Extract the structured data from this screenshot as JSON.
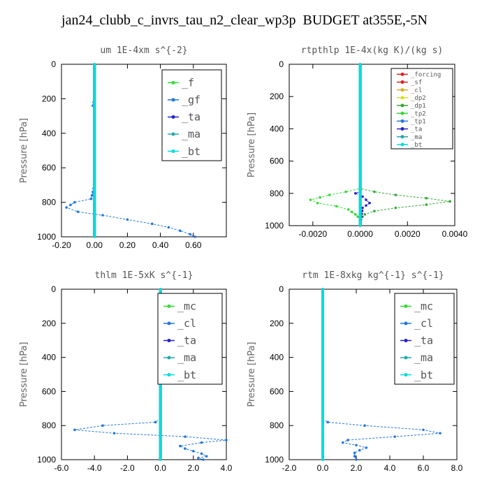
{
  "figure_title": "jan24_clubb_c_invrs_tau_n2_clear_wp3p  BUDGET at355E,-5N",
  "chart_data": [
    {
      "type": "line",
      "title": "um  1E-4xm s^{-2}",
      "ylabel": "Pressure [hPa]",
      "xlim": [
        -0.2,
        0.8
      ],
      "ylim": [
        1000,
        0
      ],
      "y_inverted": true,
      "x_ticks": [
        "-0.20",
        "0.00",
        "0.20",
        "0.40",
        "0.60"
      ],
      "x_tick_values": [
        -0.2,
        0.0,
        0.2,
        0.4,
        0.6
      ],
      "y_ticks": [
        "0",
        "200",
        "400",
        "600",
        "800",
        "1000"
      ],
      "y_tick_values": [
        0,
        200,
        400,
        600,
        800,
        1000
      ],
      "legend_position": "top-right",
      "legend_font": 15,
      "series": [
        {
          "name": "_f",
          "color": "#33dd33",
          "points": [
            [
              0,
              0
            ],
            [
              0,
              1000
            ]
          ]
        },
        {
          "name": "_gf",
          "color": "#2277dd",
          "points": [
            [
              0,
              0
            ],
            [
              0,
              200
            ],
            [
              -0.01,
              240
            ],
            [
              0,
              260
            ],
            [
              0,
              700
            ],
            [
              -0.02,
              780
            ],
            [
              -0.12,
              800
            ],
            [
              -0.17,
              830
            ],
            [
              -0.1,
              855
            ],
            [
              0.05,
              875
            ],
            [
              0.2,
              900
            ],
            [
              0.35,
              925
            ],
            [
              0.45,
              945
            ],
            [
              0.52,
              965
            ],
            [
              0.58,
              985
            ],
            [
              0.61,
              1000
            ]
          ]
        },
        {
          "name": "_ta",
          "color": "#2222cc",
          "points": [
            [
              0,
              0
            ],
            [
              0,
              1000
            ]
          ]
        },
        {
          "name": "_ma",
          "color": "#22aaaa",
          "points": [
            [
              0,
              0
            ],
            [
              0,
              1000
            ]
          ]
        },
        {
          "name": "_bt",
          "color": "#00dddd",
          "points": [
            [
              0,
              0
            ],
            [
              0,
              1000
            ]
          ]
        }
      ]
    },
    {
      "type": "line",
      "title": "rtpthlp  1E-4x(kg K)/(kg s)",
      "ylabel": "Pressure [hPa]",
      "xlim": [
        -0.003,
        0.004
      ],
      "ylim": [
        1000,
        0
      ],
      "y_inverted": true,
      "x_ticks": [
        "-0.0020",
        "0.0000",
        "0.0020",
        "0.0040"
      ],
      "x_tick_values": [
        -0.002,
        0.0,
        0.002,
        0.004
      ],
      "y_ticks": [
        "0",
        "200",
        "400",
        "600",
        "800",
        "1000"
      ],
      "y_tick_values": [
        0,
        200,
        400,
        600,
        800,
        1000
      ],
      "legend_position": "top-right",
      "legend_font": 9,
      "series": [
        {
          "name": "_forcing",
          "color": "#dd2222",
          "points": [
            [
              0,
              0
            ],
            [
              0,
              1000
            ]
          ]
        },
        {
          "name": "_sf",
          "color": "#dd2222",
          "points": [
            [
              0,
              0
            ],
            [
              0,
              1000
            ]
          ]
        },
        {
          "name": "_cl",
          "color": "#ddaa22",
          "points": [
            [
              0,
              0
            ],
            [
              0,
              1000
            ]
          ]
        },
        {
          "name": "_dp2",
          "color": "#dddd22",
          "points": [
            [
              0,
              0
            ],
            [
              0,
              1000
            ]
          ]
        },
        {
          "name": "_dp1",
          "color": "#33aa33",
          "points": [
            [
              0,
              0
            ],
            [
              0,
              770
            ],
            [
              0.0006,
              790
            ],
            [
              0.0015,
              810
            ],
            [
              0.0028,
              830
            ],
            [
              0.0038,
              850
            ],
            [
              0.0028,
              870
            ],
            [
              0.0015,
              890
            ],
            [
              0.0006,
              910
            ],
            [
              0.0002,
              930
            ],
            [
              0,
              960
            ],
            [
              0,
              1000
            ]
          ]
        },
        {
          "name": "_tp2",
          "color": "#33dd33",
          "points": [
            [
              0,
              0
            ],
            [
              0,
              770
            ],
            [
              -0.0006,
              790
            ],
            [
              -0.0013,
              810
            ],
            [
              -0.0021,
              840
            ],
            [
              -0.0018,
              860
            ],
            [
              -0.001,
              880
            ],
            [
              -0.0005,
              900
            ],
            [
              -0.0002,
              930
            ],
            [
              0,
              960
            ],
            [
              0,
              1000
            ]
          ]
        },
        {
          "name": "_tp1",
          "color": "#2277dd",
          "points": [
            [
              0,
              0
            ],
            [
              0,
              1000
            ]
          ]
        },
        {
          "name": "_ta",
          "color": "#2222cc",
          "points": [
            [
              0,
              0
            ],
            [
              0,
              790
            ],
            [
              -0.0002,
              800
            ],
            [
              0.0001,
              820
            ],
            [
              0.0004,
              860
            ],
            [
              0.0001,
              890
            ],
            [
              0,
              1000
            ]
          ]
        },
        {
          "name": "_ma",
          "color": "#22aaaa",
          "points": [
            [
              0,
              0
            ],
            [
              0,
              1000
            ]
          ]
        },
        {
          "name": "_bt",
          "color": "#00dddd",
          "points": [
            [
              0,
              0
            ],
            [
              0,
              1000
            ]
          ]
        }
      ]
    },
    {
      "type": "line",
      "title": "thlm  1E-5xK s^{-1}",
      "ylabel": "Pressure [hPa]",
      "xlim": [
        -6.0,
        4.0
      ],
      "ylim": [
        1000,
        0
      ],
      "y_inverted": true,
      "x_ticks": [
        "-6.0",
        "-4.0",
        "-2.0",
        "0.0",
        "2.0",
        "4.0"
      ],
      "x_tick_values": [
        -6,
        -4,
        -2,
        0,
        2,
        4
      ],
      "y_ticks": [
        "0",
        "200",
        "400",
        "600",
        "800",
        "1000"
      ],
      "y_tick_values": [
        0,
        200,
        400,
        600,
        800,
        1000
      ],
      "legend_position": "top-right",
      "legend_font": 15,
      "series": [
        {
          "name": "_mc",
          "color": "#33dd33",
          "points": [
            [
              0,
              0
            ],
            [
              0,
              1000
            ]
          ]
        },
        {
          "name": "_cl",
          "color": "#2277dd",
          "points": [
            [
              0,
              0
            ],
            [
              0,
              760
            ],
            [
              -0.3,
              780
            ],
            [
              -3.5,
              800
            ],
            [
              -5.2,
              825
            ],
            [
              -2.8,
              845
            ],
            [
              1.5,
              865
            ],
            [
              4.0,
              885
            ],
            [
              2.5,
              900
            ],
            [
              1.2,
              920
            ],
            [
              1.5,
              935
            ],
            [
              2.0,
              950
            ],
            [
              2.5,
              965
            ],
            [
              2.8,
              980
            ],
            [
              2.3,
              990
            ],
            [
              2.6,
              1000
            ]
          ]
        },
        {
          "name": "_ta",
          "color": "#2222cc",
          "points": [
            [
              0,
              0
            ],
            [
              0,
              1000
            ]
          ]
        },
        {
          "name": "_ma",
          "color": "#22aaaa",
          "points": [
            [
              0,
              0
            ],
            [
              0,
              1000
            ]
          ]
        },
        {
          "name": "_bt",
          "color": "#00dddd",
          "points": [
            [
              0,
              0
            ],
            [
              0,
              1000
            ]
          ]
        }
      ]
    },
    {
      "type": "line",
      "title": "rtm  1E-8xkg kg^{-1} s^{-1}",
      "ylabel": "Pressure [hPa]",
      "xlim": [
        -2.0,
        8.0
      ],
      "ylim": [
        1000,
        0
      ],
      "y_inverted": true,
      "x_ticks": [
        "-2.0",
        "0.0",
        "2.0",
        "4.0",
        "6.0",
        "8.0"
      ],
      "x_tick_values": [
        -2,
        0,
        2,
        4,
        6,
        8
      ],
      "y_ticks": [
        "0",
        "200",
        "400",
        "600",
        "800",
        "1000"
      ],
      "y_tick_values": [
        0,
        200,
        400,
        600,
        800,
        1000
      ],
      "legend_position": "top-right",
      "legend_font": 15,
      "series": [
        {
          "name": "_mc",
          "color": "#33dd33",
          "points": [
            [
              0,
              0
            ],
            [
              0,
              1000
            ]
          ]
        },
        {
          "name": "_cl",
          "color": "#2277dd",
          "points": [
            [
              0,
              0
            ],
            [
              0,
              760
            ],
            [
              0.3,
              780
            ],
            [
              2.5,
              800
            ],
            [
              6.0,
              825
            ],
            [
              7.0,
              845
            ],
            [
              4.3,
              865
            ],
            [
              1.5,
              885
            ],
            [
              1.2,
              900
            ],
            [
              2.0,
              915
            ],
            [
              2.6,
              930
            ],
            [
              2.2,
              945
            ],
            [
              1.9,
              960
            ],
            [
              1.9,
              980
            ],
            [
              2.0,
              1000
            ]
          ]
        },
        {
          "name": "_ta",
          "color": "#2222cc",
          "points": [
            [
              0,
              0
            ],
            [
              0,
              1000
            ]
          ]
        },
        {
          "name": "_ma",
          "color": "#22aaaa",
          "points": [
            [
              0,
              0
            ],
            [
              0,
              1000
            ]
          ]
        },
        {
          "name": "_bt",
          "color": "#00dddd",
          "points": [
            [
              0,
              0
            ],
            [
              0,
              1000
            ]
          ]
        }
      ]
    }
  ]
}
